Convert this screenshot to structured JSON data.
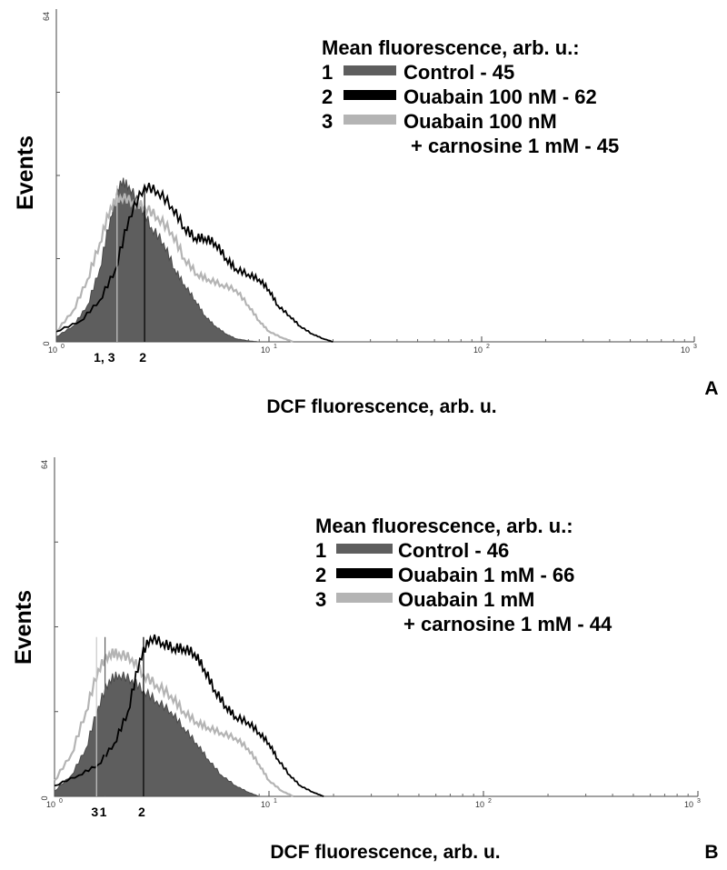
{
  "chart_data": [
    {
      "type": "area",
      "panel_label": "A",
      "xlabel": "DCF fluorescence, arb. u.",
      "ylabel": "Events",
      "x_scale": "log",
      "xlim": [
        1,
        1000
      ],
      "ylim": [
        0,
        64
      ],
      "x_ticks": [
        {
          "value": 1,
          "base": "10",
          "exp": "0"
        },
        {
          "value": 10,
          "base": "10",
          "exp": "1"
        },
        {
          "value": 100,
          "base": "10",
          "exp": "2"
        },
        {
          "value": 1000,
          "base": "10",
          "exp": "3"
        }
      ],
      "y_ticks": [
        {
          "value": 0,
          "label": "0"
        },
        {
          "value": 64,
          "label": "64"
        }
      ],
      "legend": {
        "title": "Mean fluorescence, arb. u.:",
        "entries": [
          {
            "num": "1",
            "lines": [
              "Control - 45"
            ],
            "color": "#5e5e5e"
          },
          {
            "num": "2",
            "lines": [
              "Ouabain 100 nM - 62"
            ],
            "color": "#000000"
          },
          {
            "num": "3",
            "lines": [
              "Ouabain 100 nM",
              "+ carnosine 1 mM - 45"
            ],
            "color": "#b4b4b4"
          }
        ]
      },
      "markers": [
        {
          "label": "1, 3",
          "x": 1.93
        },
        {
          "label": "2",
          "x": 2.6
        }
      ],
      "mean_lines": [
        {
          "x": 1.93,
          "color": "#c8c8c8"
        },
        {
          "x": 2.6,
          "color": "#000000"
        }
      ],
      "series": [
        {
          "name": "Control - 45",
          "style": "filled",
          "color": "#5e5e5e",
          "x": [
            1,
            1.2,
            1.4,
            1.6,
            1.8,
            2.0,
            2.2,
            2.5,
            2.8,
            3.2,
            3.6,
            4.0,
            4.5,
            5.0,
            5.6,
            6.3,
            7.0,
            8.0,
            9.0
          ],
          "y": [
            1,
            3,
            7,
            14,
            24,
            31,
            30,
            26,
            22,
            19,
            14,
            11,
            8,
            5,
            3,
            1.5,
            0.6,
            0.2,
            0
          ]
        },
        {
          "name": "Ouabain 100 nM - 62",
          "style": "line",
          "color": "#000000",
          "x": [
            1,
            1.3,
            1.6,
            1.9,
            2.2,
            2.6,
            3.0,
            3.5,
            4.0,
            4.5,
            5.0,
            5.6,
            6.3,
            7.0,
            8.0,
            9.0,
            10,
            11,
            12.5,
            14,
            16,
            18,
            20
          ],
          "y": [
            2,
            4,
            8,
            14,
            24,
            30,
            29,
            26,
            22,
            20,
            20,
            19,
            16,
            14,
            13,
            12,
            10,
            7,
            5,
            3,
            1.5,
            0.6,
            0
          ]
        },
        {
          "name": "Ouabain 100 nM + carnosine 1 mM - 45",
          "style": "line",
          "color": "#b4b4b4",
          "x": [
            1,
            1.2,
            1.4,
            1.6,
            1.8,
            2.0,
            2.3,
            2.6,
            3.0,
            3.5,
            4.0,
            4.6,
            5.2,
            6.0,
            7.0,
            8.0,
            9.0,
            10,
            11.5,
            13
          ],
          "y": [
            2,
            6,
            12,
            19,
            26,
            28,
            27,
            26,
            24,
            21,
            16,
            13,
            12,
            11,
            10,
            7,
            4,
            2,
            0.8,
            0
          ]
        }
      ]
    },
    {
      "type": "area",
      "panel_label": "B",
      "xlabel": "DCF fluorescence, arb. u.",
      "ylabel": "Events",
      "x_scale": "log",
      "xlim": [
        1,
        1000
      ],
      "ylim": [
        0,
        64
      ],
      "x_ticks": [
        {
          "value": 1,
          "base": "10",
          "exp": "0"
        },
        {
          "value": 10,
          "base": "10",
          "exp": "1"
        },
        {
          "value": 100,
          "base": "10",
          "exp": "2"
        },
        {
          "value": 1000,
          "base": "10",
          "exp": "3"
        }
      ],
      "y_ticks": [
        {
          "value": 0,
          "label": "0"
        },
        {
          "value": 64,
          "label": "64"
        }
      ],
      "legend": {
        "title": "Mean fluorescence, arb. u.:",
        "entries": [
          {
            "num": "1",
            "lines": [
              "Control - 46"
            ],
            "color": "#5e5e5e"
          },
          {
            "num": "2",
            "lines": [
              "Ouabain 1 mM - 66"
            ],
            "color": "#000000"
          },
          {
            "num": "3",
            "lines": [
              "Ouabain 1 mM",
              "+ carnosine 1 mM - 44"
            ],
            "color": "#b4b4b4"
          }
        ]
      },
      "markers": [
        {
          "label": "3",
          "x": 1.57
        },
        {
          "label": "1",
          "x": 1.72
        },
        {
          "label": "2",
          "x": 2.6
        }
      ],
      "mean_lines": [
        {
          "x": 1.57,
          "color": "#c8c8c8"
        },
        {
          "x": 1.72,
          "color": "#5e5e5e"
        },
        {
          "x": 2.6,
          "color": "#000000"
        }
      ],
      "series": [
        {
          "name": "Control - 46",
          "style": "filled",
          "color": "#5e5e5e",
          "x": [
            1,
            1.2,
            1.4,
            1.6,
            1.8,
            2.0,
            2.3,
            2.6,
            3.0,
            3.5,
            4.0,
            4.6,
            5.2,
            6.0,
            7.0,
            8.0,
            9.0
          ],
          "y": [
            1,
            4,
            9,
            17,
            22,
            23,
            22,
            20,
            18,
            16,
            13,
            10,
            7,
            4,
            2,
            0.8,
            0
          ]
        },
        {
          "name": "Ouabain 1 mM - 66",
          "style": "line",
          "color": "#000000",
          "x": [
            1,
            1.3,
            1.6,
            1.9,
            2.2,
            2.5,
            2.8,
            3.2,
            3.6,
            4.0,
            4.5,
            5.0,
            5.6,
            6.3,
            7.0,
            8.0,
            9.0,
            10,
            11,
            12.5,
            14,
            16,
            18
          ],
          "y": [
            2,
            4,
            6,
            10,
            16,
            26,
            30,
            29,
            28,
            28,
            27,
            24,
            20,
            17,
            15,
            14,
            12,
            10,
            7,
            4,
            2,
            0.8,
            0
          ]
        },
        {
          "name": "Ouabain 1 mM + carnosine 1 mM - 44",
          "style": "line",
          "color": "#b4b4b4",
          "x": [
            1,
            1.2,
            1.4,
            1.6,
            1.8,
            2.0,
            2.3,
            2.6,
            3.0,
            3.5,
            4.0,
            4.6,
            5.2,
            6.0,
            7.0,
            8.0,
            9.0,
            10,
            11.5,
            13
          ],
          "y": [
            3,
            8,
            16,
            24,
            27,
            27,
            26,
            23,
            21,
            19,
            16,
            14,
            13,
            12,
            11,
            9,
            6,
            3,
            1,
            0
          ]
        }
      ]
    }
  ]
}
